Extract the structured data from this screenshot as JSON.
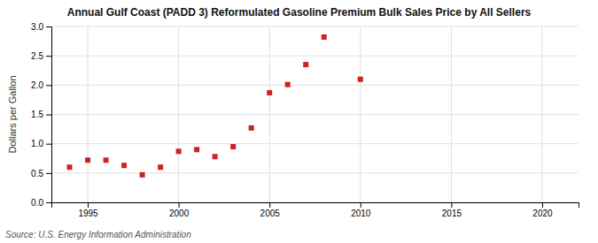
{
  "chart_data": {
    "type": "scatter",
    "title": "Annual Gulf Coast (PADD 3) Reformulated Gasoline Premium Bulk Sales Price by All Sellers",
    "ylabel": "Dollars per Gallon",
    "source": "Source: U.S. Energy Information Administration",
    "x": [
      1994,
      1995,
      1996,
      1997,
      1998,
      1999,
      2000,
      2001,
      2002,
      2003,
      2004,
      2005,
      2006,
      2007,
      2008,
      2010
    ],
    "values": [
      0.6,
      0.72,
      0.72,
      0.63,
      0.47,
      0.6,
      0.87,
      0.9,
      0.78,
      0.95,
      1.27,
      1.87,
      2.01,
      2.35,
      2.82,
      2.1
    ],
    "color": "#cc2222",
    "marker": "square",
    "xlim": [
      1993,
      2022
    ],
    "ylim": [
      0.0,
      3.0
    ],
    "xticks": [
      1995,
      2000,
      2005,
      2010,
      2015,
      2020
    ],
    "yticks": [
      {
        "value": 0.0,
        "label": "0.0"
      },
      0.5,
      {
        "value": 1.0,
        "label": "1.0"
      },
      1.5,
      {
        "value": 2.0,
        "label": "2.0"
      },
      2.5,
      {
        "value": 3.0,
        "label": "3.0"
      }
    ],
    "grid": true
  }
}
